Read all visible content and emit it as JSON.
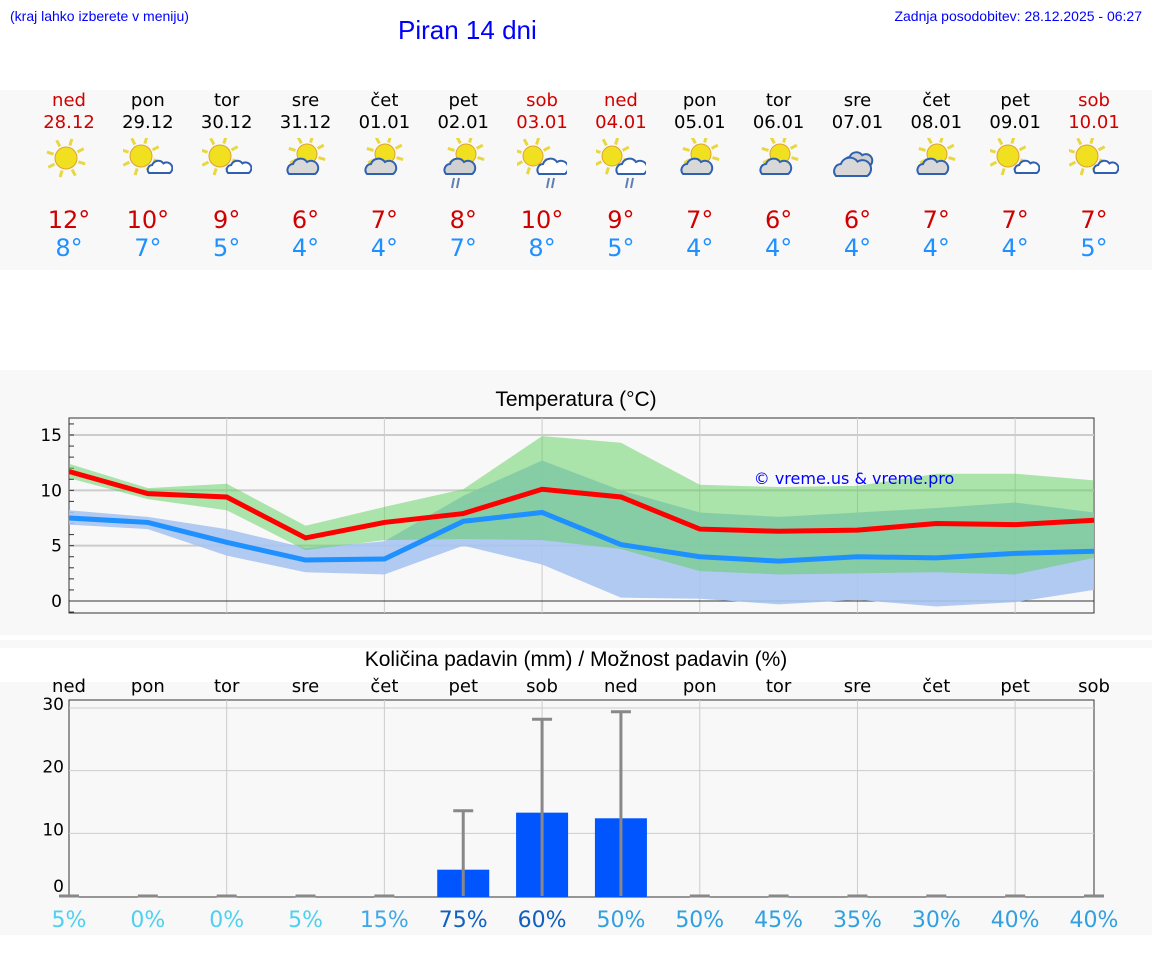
{
  "header": {
    "hint": "(kraj lahko izberete v meniju)",
    "title": "Piran 14 dni",
    "updated": "Zadnja posodobitev: 28.12.2025 - 06:27"
  },
  "days": [
    {
      "name": "ned",
      "date": "28.12",
      "weekend": true,
      "icon": "sun-icon",
      "max": "12°",
      "min": "8°",
      "pct": "5%"
    },
    {
      "name": "pon",
      "date": "29.12",
      "weekend": false,
      "icon": "sun-small-cloud-icon",
      "max": "10°",
      "min": "7°",
      "pct": "0%"
    },
    {
      "name": "tor",
      "date": "30.12",
      "weekend": false,
      "icon": "sun-small-cloud-icon",
      "max": "9°",
      "min": "5°",
      "pct": "0%"
    },
    {
      "name": "sre",
      "date": "31.12",
      "weekend": false,
      "icon": "cloud-sun-icon",
      "max": "6°",
      "min": "4°",
      "pct": "5%"
    },
    {
      "name": "čet",
      "date": "01.01",
      "weekend": false,
      "icon": "cloud-sun-icon",
      "max": "7°",
      "min": "4°",
      "pct": "15%"
    },
    {
      "name": "pet",
      "date": "02.01",
      "weekend": false,
      "icon": "cloud-sun-rain-icon",
      "max": "8°",
      "min": "7°",
      "pct": "75%"
    },
    {
      "name": "sob",
      "date": "03.01",
      "weekend": true,
      "icon": "sun-cloud-rain-icon",
      "max": "10°",
      "min": "8°",
      "pct": "60%"
    },
    {
      "name": "ned",
      "date": "04.01",
      "weekend": true,
      "icon": "sun-cloud-rain-icon",
      "max": "9°",
      "min": "5°",
      "pct": "50%"
    },
    {
      "name": "pon",
      "date": "05.01",
      "weekend": false,
      "icon": "cloud-sun-icon",
      "max": "7°",
      "min": "4°",
      "pct": "50%"
    },
    {
      "name": "tor",
      "date": "06.01",
      "weekend": false,
      "icon": "cloud-sun-icon",
      "max": "6°",
      "min": "4°",
      "pct": "45%"
    },
    {
      "name": "sre",
      "date": "07.01",
      "weekend": false,
      "icon": "clouds-icon",
      "max": "6°",
      "min": "4°",
      "pct": "35%"
    },
    {
      "name": "čet",
      "date": "08.01",
      "weekend": false,
      "icon": "cloud-sun-icon",
      "max": "7°",
      "min": "4°",
      "pct": "30%"
    },
    {
      "name": "pet",
      "date": "09.01",
      "weekend": false,
      "icon": "sun-small-cloud-icon",
      "max": "7°",
      "min": "4°",
      "pct": "40%"
    },
    {
      "name": "sob",
      "date": "10.01",
      "weekend": true,
      "icon": "sun-small-cloud-icon",
      "max": "7°",
      "min": "5°",
      "pct": "40%"
    }
  ],
  "colors": {
    "max": "#ff0000",
    "min": "#1e90ff",
    "max_band": "#a8e6a8",
    "min_band": "#a9c4f0",
    "bar": "#0055ff",
    "error": "#888888"
  },
  "chart_data": [
    {
      "type": "line",
      "title": "Temperatura (°C)",
      "ylim": [
        -1,
        16.5
      ],
      "yticks": [
        0,
        5,
        10,
        15
      ],
      "watermark": "© vreme.us & vreme.pro",
      "series": [
        {
          "name": "max",
          "values": [
            11.7,
            9.7,
            9.4,
            5.7,
            7.1,
            7.9,
            10.1,
            9.4,
            6.5,
            6.3,
            6.4,
            7.0,
            6.9,
            7.3
          ],
          "band": [
            [
              11.1,
              12.4
            ],
            [
              9.2,
              10.2
            ],
            [
              8.2,
              10.6
            ],
            [
              4.6,
              6.8
            ],
            [
              5.5,
              8.5
            ],
            [
              5.6,
              10.1
            ],
            [
              5.5,
              14.9
            ],
            [
              4.7,
              14.3
            ],
            [
              2.7,
              10.5
            ],
            [
              2.4,
              10.3
            ],
            [
              2.5,
              10.4
            ],
            [
              2.6,
              11.5
            ],
            [
              2.4,
              11.5
            ],
            [
              3.9,
              10.9
            ]
          ]
        },
        {
          "name": "min",
          "values": [
            7.5,
            7.1,
            5.3,
            3.7,
            3.8,
            7.2,
            8.0,
            5.1,
            4.0,
            3.6,
            4.0,
            3.9,
            4.3,
            4.5
          ],
          "band": [
            [
              6.9,
              8.2
            ],
            [
              6.5,
              7.6
            ],
            [
              4.1,
              6.5
            ],
            [
              2.6,
              4.8
            ],
            [
              2.4,
              5.4
            ],
            [
              5.0,
              9.5
            ],
            [
              3.3,
              12.7
            ],
            [
              0.3,
              10.0
            ],
            [
              0.2,
              8.0
            ],
            [
              -0.3,
              7.6
            ],
            [
              0.1,
              8.0
            ],
            [
              -0.5,
              8.4
            ],
            [
              -0.1,
              8.9
            ],
            [
              1.0,
              8.0
            ]
          ]
        }
      ]
    },
    {
      "type": "bar",
      "title": "Količina padavin (mm) / Možnost padavin (%)",
      "ylim": [
        -2,
        31
      ],
      "yticks": [
        0,
        10,
        20,
        30
      ],
      "values": [
        0,
        0,
        0,
        0,
        0,
        4.2,
        13.3,
        12.4,
        0,
        0,
        0,
        0,
        0,
        0
      ],
      "error_upper": [
        0,
        0,
        0,
        0,
        0,
        13.6,
        28.2,
        29.4,
        0,
        0,
        0,
        0,
        0,
        0
      ]
    }
  ]
}
